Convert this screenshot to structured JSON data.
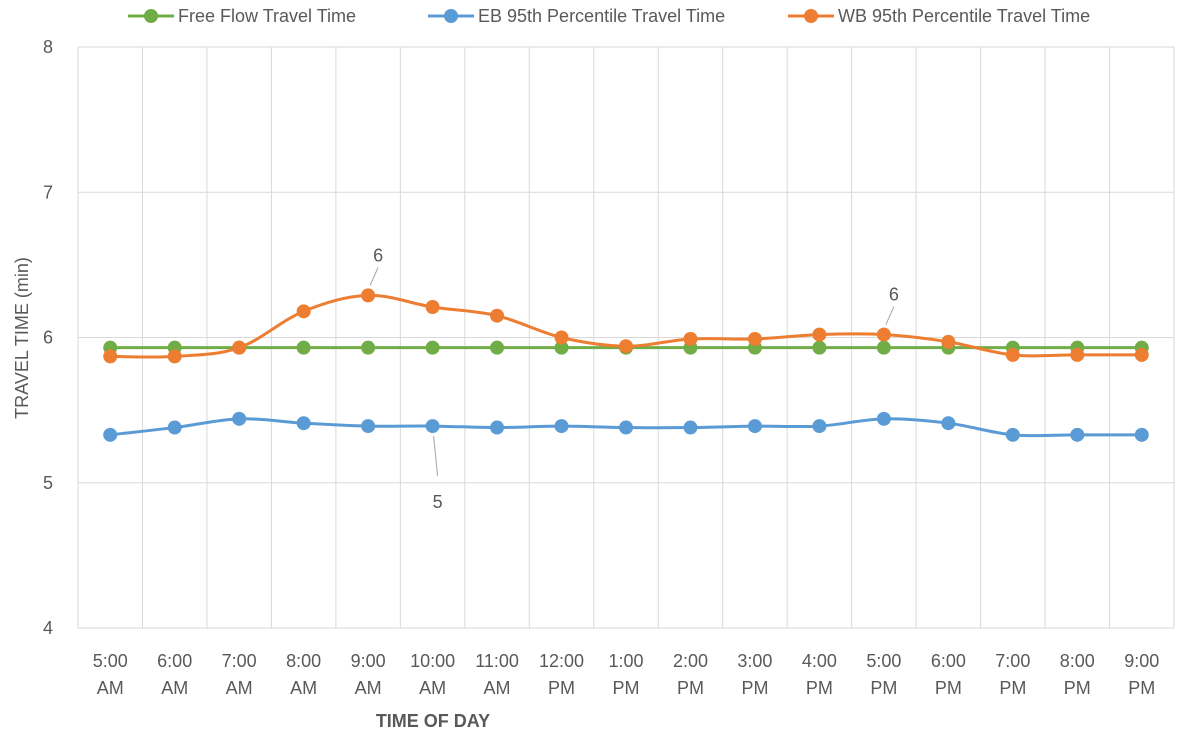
{
  "chart_data": {
    "type": "line",
    "categories": [
      [
        "5:00",
        "AM"
      ],
      [
        "6:00",
        "AM"
      ],
      [
        "7:00",
        "AM"
      ],
      [
        "8:00",
        "AM"
      ],
      [
        "9:00",
        "AM"
      ],
      [
        "10:00",
        "AM"
      ],
      [
        "11:00",
        "AM"
      ],
      [
        "12:00",
        "PM"
      ],
      [
        "1:00",
        "PM"
      ],
      [
        "2:00",
        "PM"
      ],
      [
        "3:00",
        "PM"
      ],
      [
        "4:00",
        "PM"
      ],
      [
        "5:00",
        "PM"
      ],
      [
        "6:00",
        "PM"
      ],
      [
        "7:00",
        "PM"
      ],
      [
        "8:00",
        "PM"
      ],
      [
        "9:00",
        "PM"
      ]
    ],
    "series": [
      {
        "name": "Free Flow Travel Time",
        "color": "#70ad47",
        "smooth": false,
        "values": [
          5.93,
          5.93,
          5.93,
          5.93,
          5.93,
          5.93,
          5.93,
          5.93,
          5.93,
          5.93,
          5.93,
          5.93,
          5.93,
          5.93,
          5.93,
          5.93,
          5.93
        ]
      },
      {
        "name": "EB 95th Percentile Travel Time",
        "color": "#5b9bd5",
        "smooth": true,
        "values": [
          5.33,
          5.38,
          5.44,
          5.41,
          5.39,
          5.39,
          5.38,
          5.39,
          5.38,
          5.38,
          5.39,
          5.39,
          5.44,
          5.41,
          5.33,
          5.33,
          5.33
        ]
      },
      {
        "name": "WB 95th Percentile Travel Time",
        "color": "#ed7d31",
        "smooth": true,
        "values": [
          5.87,
          5.87,
          5.93,
          6.18,
          6.29,
          6.21,
          6.15,
          6.0,
          5.94,
          5.99,
          5.99,
          6.02,
          6.02,
          5.97,
          5.88,
          5.88,
          5.88
        ]
      }
    ],
    "annotations": [
      {
        "series": 2,
        "index": 4,
        "text": "6",
        "position": "above"
      },
      {
        "series": 2,
        "index": 12,
        "text": "6",
        "position": "above"
      },
      {
        "series": 1,
        "index": 5,
        "text": "5",
        "position": "below"
      }
    ],
    "xlabel": "TIME OF DAY",
    "ylabel": "TRAVEL TIME (min)",
    "ylim": [
      4,
      8
    ],
    "yticks": [
      4,
      5,
      6,
      7,
      8
    ],
    "grid": true,
    "legend_position": "top",
    "gridline_color": "#d9d9d9"
  }
}
